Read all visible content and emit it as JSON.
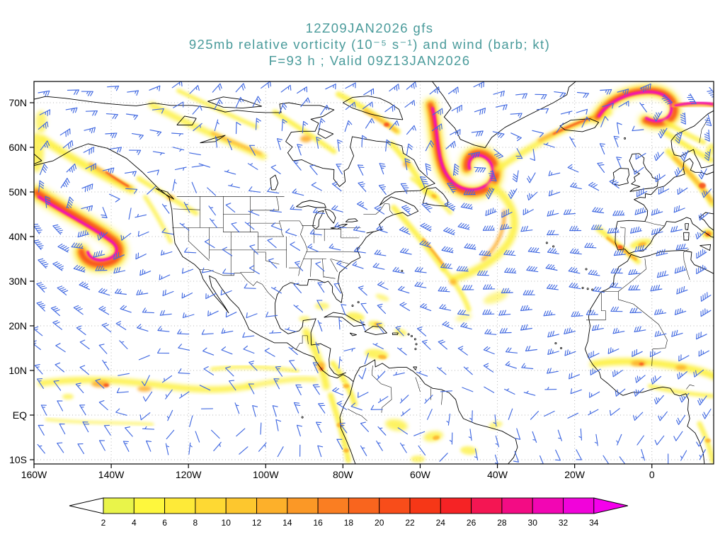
{
  "title": {
    "line1": "12Z09JAN2026 gfs",
    "line2": "925mb relative vorticity (10⁻⁵ s⁻¹) and wind (barb; kt)",
    "line3": "F=93 h ; Valid 09Z13JAN2026"
  },
  "axes": {
    "y_tick_labels": [
      "70N",
      "60N",
      "50N",
      "40N",
      "30N",
      "20N",
      "10N",
      "EQ",
      "10S"
    ],
    "y_tick_lats": [
      70,
      60,
      50,
      40,
      30,
      20,
      10,
      0,
      -10
    ],
    "x_tick_labels": [
      "160W",
      "140W",
      "120W",
      "100W",
      "80W",
      "60W",
      "40W",
      "20W",
      "0"
    ],
    "x_tick_lons": [
      -160,
      -140,
      -120,
      -100,
      -80,
      -60,
      -40,
      -20,
      0
    ]
  },
  "colorbar": {
    "tick_labels": [
      "2",
      "4",
      "6",
      "8",
      "10",
      "12",
      "14",
      "16",
      "18",
      "20",
      "22",
      "24",
      "26",
      "28",
      "30",
      "32",
      "34"
    ],
    "segment_colors": [
      "#e9f44a",
      "#fef73d",
      "#feea38",
      "#fed933",
      "#fdc72e",
      "#fdb02a",
      "#fb9826",
      "#fa7e22",
      "#f9651e",
      "#f84d1a",
      "#f63717",
      "#f52325",
      "#f41653",
      "#f30c84",
      "#f206b3",
      "#f103da"
    ],
    "under_arrow_color": "#ffffff",
    "over_arrow_color": "#f500ec",
    "outline_color": "#000000"
  },
  "style_colors": {
    "title_text": "#4a9b9b",
    "axis_text": "#000000",
    "wind_barb": "#4169e1",
    "grid_line": "#b5b5b5",
    "coastline": "#000000",
    "background": "#ffffff"
  },
  "chart_data": {
    "type": "heatmap",
    "projection": "latlon",
    "model": "gfs",
    "init_time": "12Z09JAN2026",
    "forecast_hour": 93,
    "valid_time": "09Z13JAN2026",
    "level": "925mb",
    "field": "relative vorticity",
    "field_units": "10⁻⁵ s⁻¹",
    "overlay": "wind (barb)",
    "wind_units": "kt",
    "x_ticks": [
      "160W",
      "140W",
      "120W",
      "100W",
      "80W",
      "60W",
      "40W",
      "20W",
      "0"
    ],
    "y_ticks": [
      "70N",
      "60N",
      "50N",
      "40N",
      "30N",
      "20N",
      "10N",
      "EQ",
      "10S"
    ],
    "lon_range_deg": [
      -160,
      16
    ],
    "lat_range_deg": [
      -11,
      75
    ],
    "shading_levels": [
      2,
      4,
      6,
      8,
      10,
      12,
      14,
      16,
      18,
      20,
      22,
      24,
      26,
      28,
      30,
      32,
      34
    ],
    "grid": true,
    "legend_position": "bottom",
    "vorticity_maxima": [
      {
        "region": "northeast Pacific hook off Pacific Northwest coast",
        "lon": -148,
        "lat": 44,
        "approx_value": 34
      },
      {
        "region": "occluded cyclone spiral south of Greenland / Labrador Sea",
        "lon": -46,
        "lat": 52,
        "approx_value": 34
      },
      {
        "region": "S-shaped filament, Norwegian Sea / Arctic",
        "lon": 2,
        "lat": 71,
        "approx_value": 34
      },
      {
        "region": "NE Atlantic near British Isles / Biscay",
        "lon": -5,
        "lat": 50,
        "approx_value": 18
      },
      {
        "region": "eastern Pacific ITCZ band near 8N",
        "lon": -130,
        "lat": 8,
        "approx_value": 12
      },
      {
        "region": "Panama bight / western Colombia",
        "lon": -79,
        "lat": 7,
        "approx_value": 14
      },
      {
        "region": "West African ITCZ near 10N",
        "lon": -3,
        "lat": 10,
        "approx_value": 12
      },
      {
        "region": "central Mediterranean",
        "lon": 14,
        "lat": 38,
        "approx_value": 14
      }
    ],
    "wind_flow_summary": "Broad 15–40 kt midlatitude westerlies across the Pacific, North America and the Atlantic with cyclonic circulations around each vorticity maximum; northeast trade easterlies equatorward of about 20N."
  }
}
